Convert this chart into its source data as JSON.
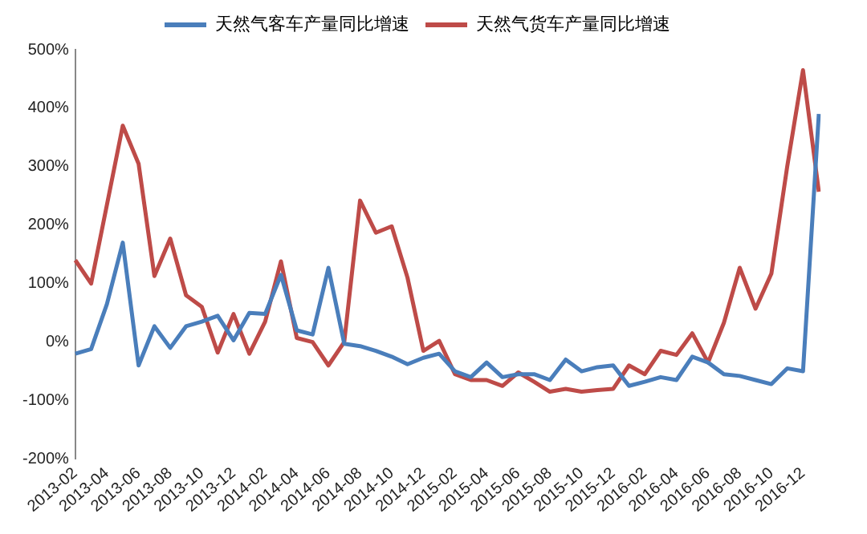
{
  "chart_data": {
    "type": "line",
    "categories": [
      "2013-02",
      null,
      "2013-04",
      null,
      "2013-06",
      null,
      "2013-08",
      null,
      "2013-10",
      null,
      "2013-12",
      null,
      "2014-02",
      null,
      "2014-04",
      null,
      "2014-06",
      null,
      "2014-08",
      null,
      "2014-10",
      null,
      "2014-12",
      null,
      "2015-02",
      null,
      "2015-04",
      null,
      "2015-06",
      null,
      "2015-08",
      null,
      "2015-10",
      null,
      "2015-12",
      null,
      "2016-02",
      null,
      "2016-04",
      null,
      "2016-06",
      null,
      "2016-08",
      null,
      "2016-10",
      null,
      "2016-12",
      null
    ],
    "series": [
      {
        "name": "天然气客车产量同比增速",
        "color": "#4a7ebb",
        "values": [
          -20,
          -12,
          65,
          170,
          -40,
          27,
          -10,
          27,
          35,
          45,
          3,
          50,
          48,
          115,
          20,
          13,
          127,
          -3,
          -7,
          -15,
          -25,
          -38,
          -27,
          -20,
          -50,
          -60,
          -35,
          -60,
          -55,
          -55,
          -65,
          -30,
          -50,
          -43,
          -40,
          -75,
          -68,
          -60,
          -65,
          -25,
          -35,
          -55,
          -58,
          -65,
          -72,
          -45,
          -50,
          390
        ]
      },
      {
        "name": "天然气货车产量同比增速",
        "color": "#be4b48",
        "values": [
          140,
          100,
          235,
          370,
          305,
          113,
          177,
          80,
          60,
          -18,
          48,
          -20,
          35,
          138,
          7,
          0,
          -40,
          0,
          242,
          187,
          198,
          110,
          -15,
          2,
          -55,
          -65,
          -65,
          -75,
          -52,
          -68,
          -85,
          -80,
          -85,
          -82,
          -80,
          -40,
          -55,
          -15,
          -22,
          15,
          -35,
          33,
          127,
          57,
          117,
          300,
          465,
          257
        ]
      }
    ],
    "ylim": [
      -200,
      500
    ],
    "yticks": [
      {
        "value": -200,
        "label": "-200%"
      },
      {
        "value": -100,
        "label": "-100%"
      },
      {
        "value": 0,
        "label": "0%"
      },
      {
        "value": 100,
        "label": "100%"
      },
      {
        "value": 200,
        "label": "200%"
      },
      {
        "value": 300,
        "label": "300%"
      },
      {
        "value": 400,
        "label": "400%"
      },
      {
        "value": 500,
        "label": "500%"
      }
    ],
    "grid": false,
    "legend": "top",
    "marker": "none",
    "line_style": "solid"
  }
}
